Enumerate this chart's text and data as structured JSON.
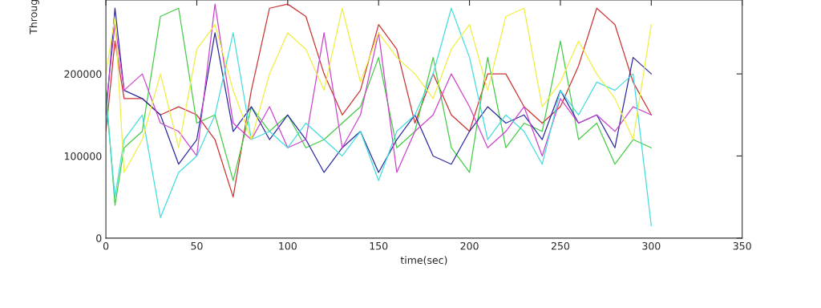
{
  "chart_data": {
    "type": "line",
    "xlabel": "time(sec)",
    "ylabel": "Throug",
    "xlim": [
      0,
      350
    ],
    "xticks": [
      0,
      50,
      100,
      150,
      200,
      250,
      300,
      350
    ],
    "ylim": [
      0,
      290000
    ],
    "yticks": [
      0,
      100000,
      200000
    ],
    "grid": false,
    "legend": false,
    "x": [
      0,
      5,
      10,
      20,
      30,
      40,
      50,
      60,
      70,
      80,
      90,
      100,
      110,
      120,
      130,
      140,
      150,
      160,
      170,
      180,
      190,
      200,
      210,
      220,
      230,
      240,
      250,
      260,
      270,
      280,
      290,
      300
    ],
    "series": [
      {
        "color": "#cc3333",
        "values": [
          130000,
          240000,
          170000,
          170000,
          150000,
          160000,
          150000,
          120000,
          50000,
          180000,
          280000,
          285000,
          270000,
          200000,
          150000,
          180000,
          260000,
          230000,
          140000,
          200000,
          150000,
          130000,
          200000,
          200000,
          160000,
          140000,
          160000,
          210000,
          280000,
          260000,
          190000,
          150000
        ]
      },
      {
        "color": "#44cc44",
        "values": [
          180000,
          40000,
          110000,
          130000,
          270000,
          280000,
          140000,
          150000,
          70000,
          160000,
          130000,
          150000,
          110000,
          120000,
          140000,
          160000,
          220000,
          110000,
          130000,
          220000,
          110000,
          80000,
          220000,
          110000,
          140000,
          130000,
          240000,
          120000,
          140000,
          90000,
          120000,
          110000
        ]
      },
      {
        "color": "#2a2aa0",
        "values": [
          150000,
          280000,
          180000,
          170000,
          150000,
          90000,
          120000,
          250000,
          130000,
          160000,
          120000,
          150000,
          120000,
          80000,
          110000,
          130000,
          80000,
          120000,
          150000,
          100000,
          90000,
          130000,
          160000,
          140000,
          150000,
          120000,
          180000,
          140000,
          150000,
          110000,
          220000,
          200000
        ]
      },
      {
        "color": "#cc44cc",
        "values": [
          160000,
          260000,
          180000,
          200000,
          140000,
          130000,
          100000,
          285000,
          140000,
          120000,
          160000,
          110000,
          120000,
          250000,
          110000,
          150000,
          250000,
          80000,
          130000,
          150000,
          200000,
          160000,
          110000,
          130000,
          160000,
          100000,
          170000,
          140000,
          150000,
          130000,
          160000,
          150000
        ]
      },
      {
        "color": "#44dddd",
        "values": [
          170000,
          50000,
          120000,
          150000,
          25000,
          80000,
          100000,
          150000,
          250000,
          120000,
          130000,
          110000,
          140000,
          120000,
          100000,
          130000,
          70000,
          130000,
          150000,
          200000,
          280000,
          220000,
          120000,
          150000,
          130000,
          90000,
          180000,
          150000,
          190000,
          180000,
          200000,
          15000
        ]
      },
      {
        "color": "#eeee44",
        "values": [
          200000,
          270000,
          80000,
          120000,
          200000,
          110000,
          230000,
          260000,
          180000,
          120000,
          200000,
          250000,
          230000,
          180000,
          280000,
          190000,
          250000,
          220000,
          200000,
          170000,
          230000,
          260000,
          180000,
          270000,
          280000,
          160000,
          190000,
          240000,
          200000,
          170000,
          120000,
          260000
        ]
      }
    ]
  }
}
